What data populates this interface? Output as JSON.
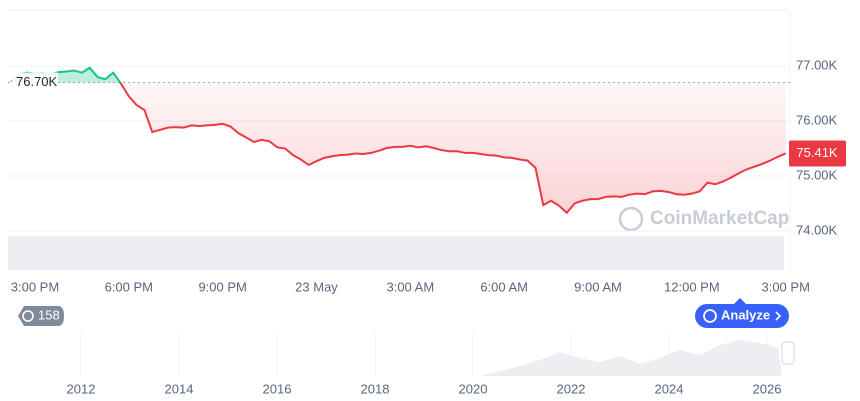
{
  "chart_data": [
    {
      "type": "line",
      "categories": [
        null,
        null,
        null,
        "3:00 PM",
        null,
        null,
        null,
        null,
        null,
        null,
        null,
        null,
        null,
        null,
        null,
        "6:00 PM",
        null,
        null,
        null,
        null,
        null,
        null,
        null,
        null,
        null,
        null,
        null,
        "9:00 PM",
        null,
        null,
        null,
        null,
        null,
        null,
        null,
        null,
        null,
        null,
        null,
        "23 May",
        null,
        null,
        null,
        null,
        null,
        null,
        null,
        null,
        null,
        null,
        null,
        "3:00 AM",
        null,
        null,
        null,
        null,
        null,
        null,
        null,
        null,
        null,
        null,
        null,
        "6:00 AM",
        null,
        null,
        null,
        null,
        null,
        null,
        null,
        null,
        null,
        null,
        null,
        "9:00 AM",
        null,
        null,
        null,
        null,
        null,
        null,
        null,
        null,
        null,
        null,
        null,
        "12:00 PM",
        null,
        null,
        null,
        null,
        null,
        null,
        null,
        null,
        null,
        null,
        null,
        "3:00 PM"
      ],
      "values": [
        76.72,
        76.86,
        76.88,
        76.86,
        76.87,
        76.85,
        76.89,
        76.9,
        76.92,
        76.88,
        76.97,
        76.8,
        76.76,
        76.88,
        76.68,
        76.45,
        76.29,
        76.2,
        75.8,
        75.84,
        75.88,
        75.89,
        75.88,
        75.92,
        75.91,
        75.92,
        75.93,
        75.95,
        75.9,
        75.78,
        75.7,
        75.62,
        75.66,
        75.63,
        75.52,
        75.5,
        75.38,
        75.3,
        75.2,
        75.27,
        75.33,
        75.36,
        75.38,
        75.39,
        75.41,
        75.4,
        75.42,
        75.46,
        75.51,
        75.53,
        75.53,
        75.55,
        75.52,
        75.54,
        75.51,
        75.47,
        75.45,
        75.45,
        75.42,
        75.42,
        75.4,
        75.38,
        75.37,
        75.34,
        75.33,
        75.3,
        75.28,
        75.15,
        74.47,
        74.55,
        74.46,
        74.33,
        74.5,
        74.55,
        74.58,
        74.58,
        74.62,
        74.63,
        74.62,
        74.66,
        74.68,
        74.67,
        74.72,
        74.73,
        74.71,
        74.67,
        74.66,
        74.68,
        74.72,
        74.88,
        74.85,
        74.9,
        74.97,
        75.05,
        75.12,
        75.17,
        75.22,
        75.28,
        75.35,
        75.41
      ],
      "ylim": [
        73.29,
        78.02
      ],
      "yticks": [
        {
          "value": 74,
          "label": "74.00K"
        },
        {
          "value": 75,
          "label": "75.00K"
        },
        {
          "value": 76,
          "label": "76.00K"
        },
        {
          "value": 77,
          "label": "77.00K"
        }
      ],
      "grid": true,
      "baseline": 76.7,
      "baseline_label": "76.70K",
      "last_label": "75.41K",
      "up_color": "#16c784",
      "down_color": "#ea3943",
      "watermark": "CoinMarketCap"
    },
    {
      "type": "navigator",
      "xlim": [
        2010.51,
        2026.47
      ],
      "xticks": [
        2012,
        2014,
        2016,
        2018,
        2020,
        2022,
        2024,
        2026
      ]
    }
  ],
  "controls": {
    "history_count": "158",
    "analyze": "Analyze"
  }
}
